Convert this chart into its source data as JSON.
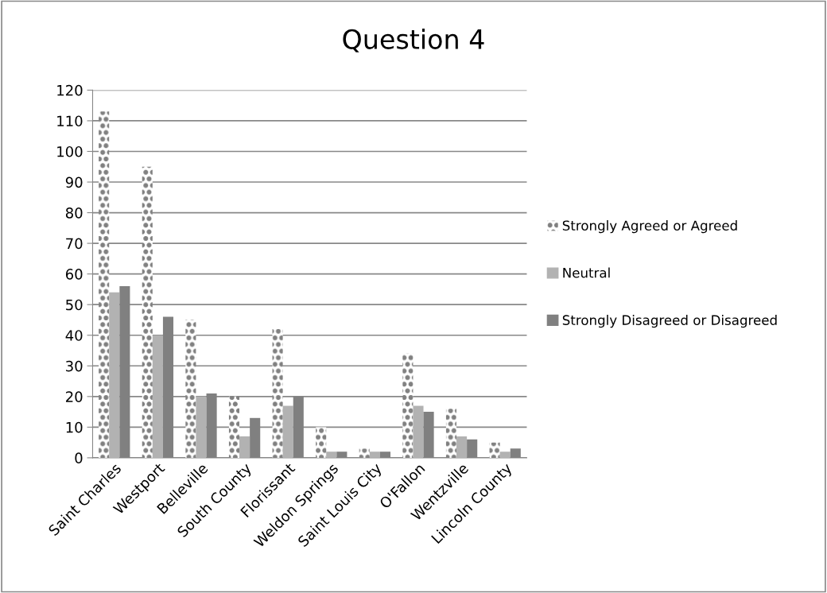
{
  "chart_data": {
    "type": "bar",
    "title": "Question 4",
    "categories": [
      "Saint Charles",
      "Westport",
      "Belleville",
      "South County",
      "Florissant",
      "Weldon Springs",
      "Saint Louis City",
      "O'Fallon",
      "Wentzville",
      "Lincoln County"
    ],
    "series": [
      {
        "name": "Strongly Agreed or Agreed",
        "color": "#808080",
        "values": [
          113,
          95,
          45,
          20,
          42,
          10,
          3,
          34,
          16,
          5
        ]
      },
      {
        "name": "Neutral",
        "color": "#b2b2b2",
        "values": [
          54,
          40,
          20,
          7,
          17,
          2,
          2,
          17,
          7,
          2
        ]
      },
      {
        "name": "Strongly Disagreed or Disagreed",
        "color": "#808080",
        "values": [
          56,
          46,
          21,
          13,
          20,
          2,
          2,
          15,
          6,
          3
        ]
      }
    ],
    "ylim": [
      0,
      120
    ],
    "yticks": [
      0,
      10,
      20,
      30,
      40,
      50,
      60,
      70,
      80,
      90,
      100,
      110,
      120
    ],
    "grid": "y",
    "legend": "right"
  }
}
